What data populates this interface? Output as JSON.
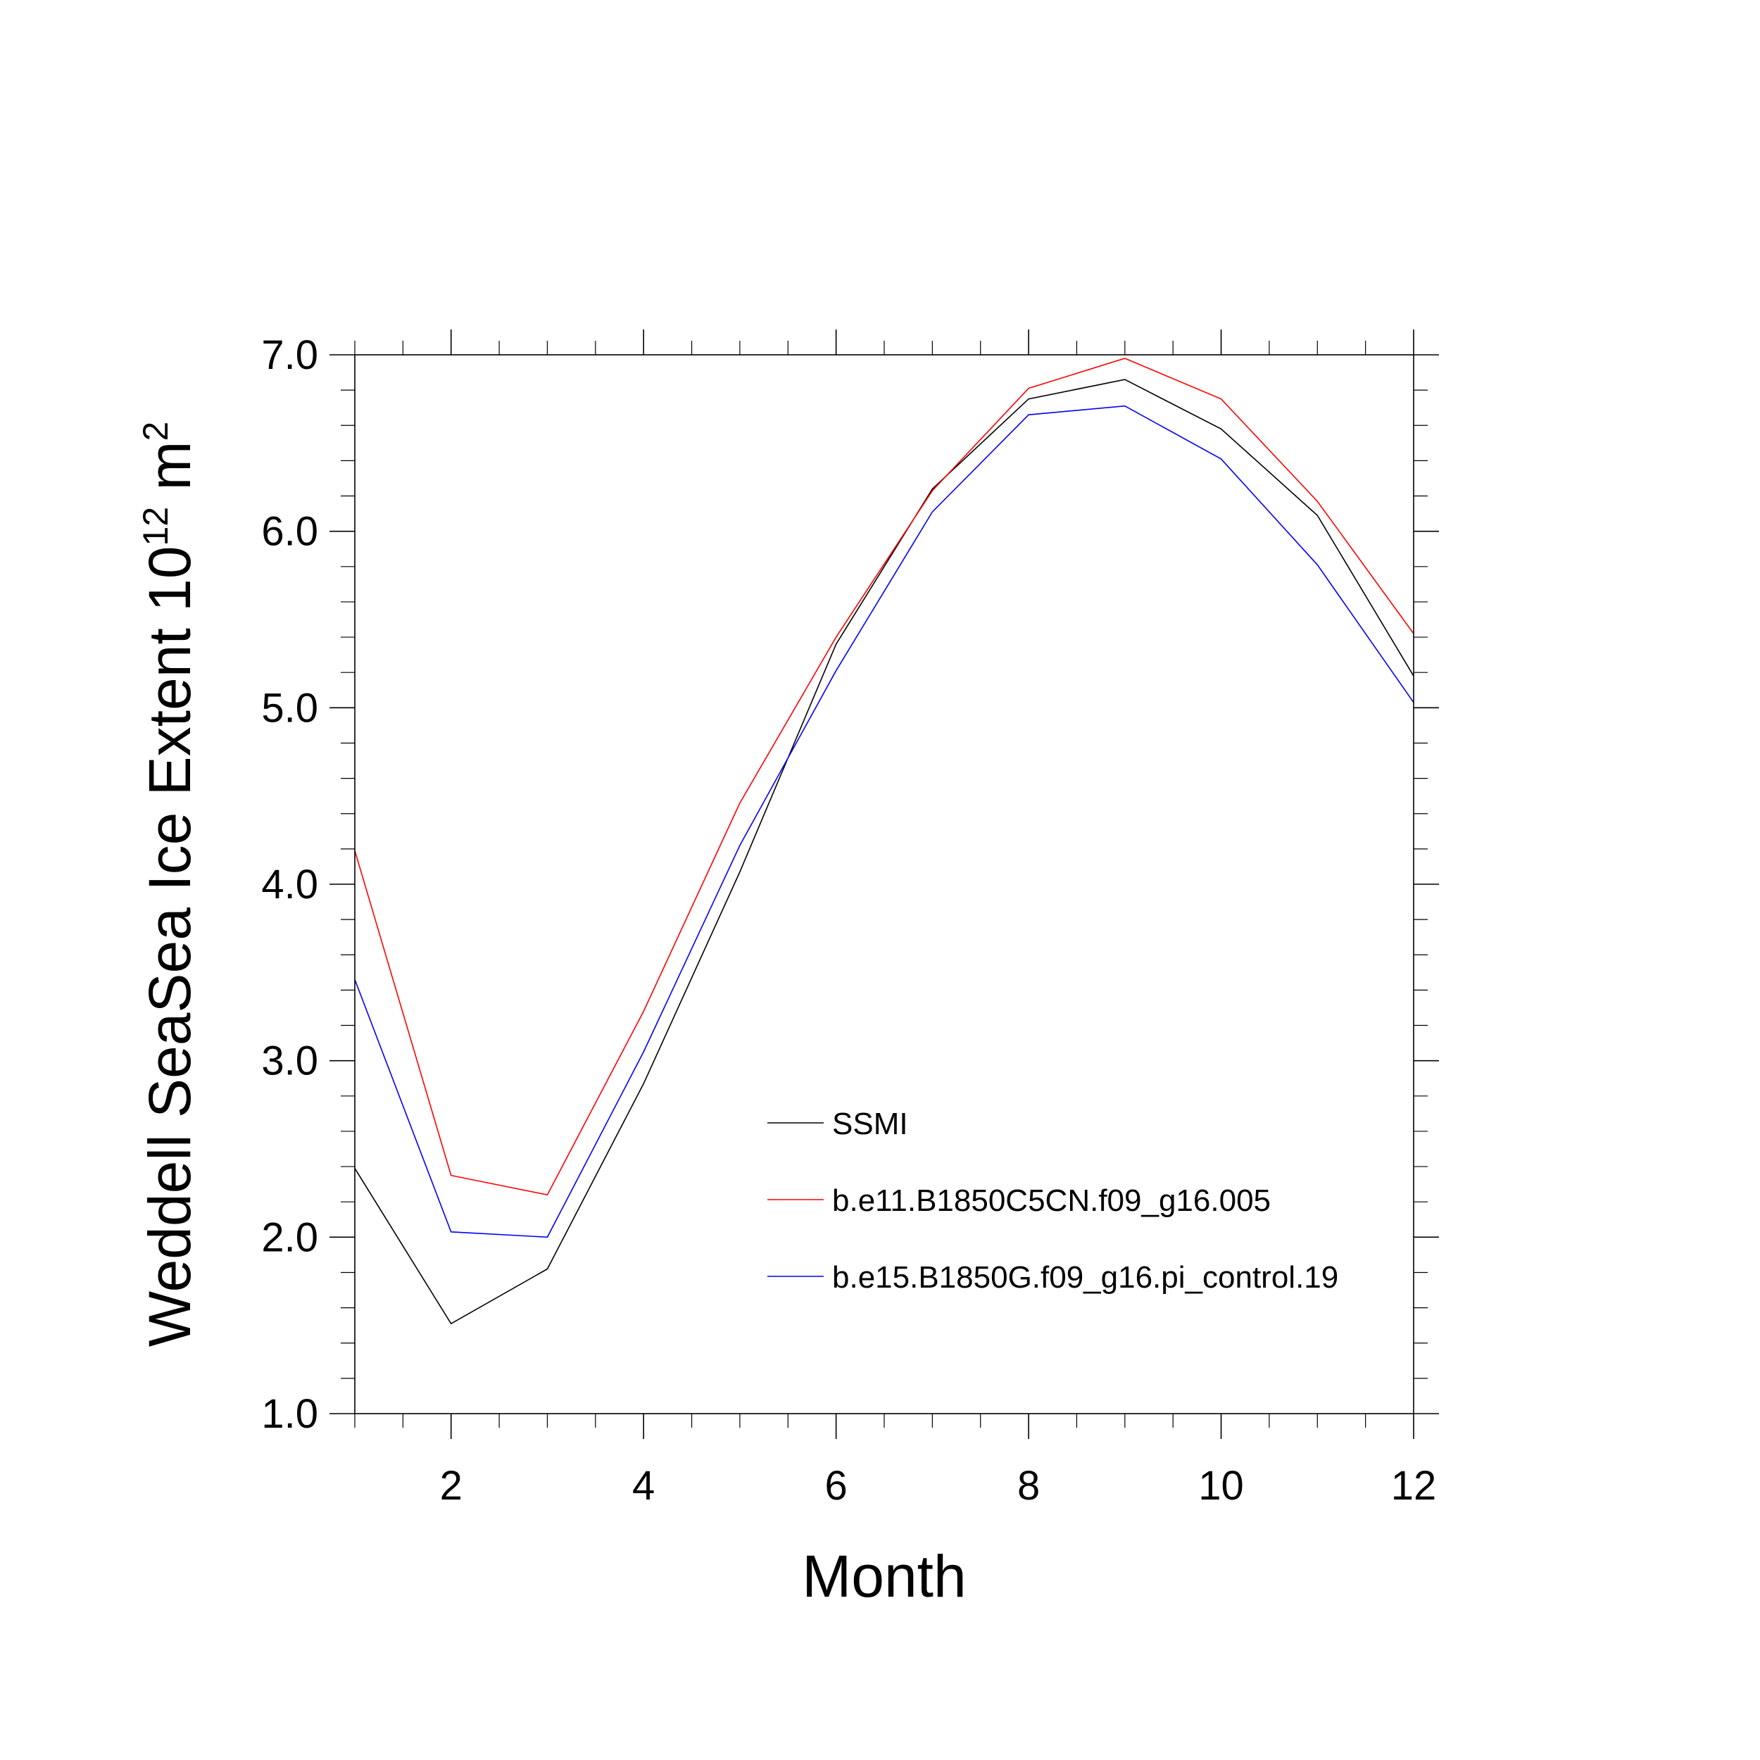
{
  "chart_data": {
    "type": "line",
    "title": "",
    "xlabel": "Month",
    "ylabel": "Weddell SeaSea Ice Extent 10",
    "ylabel_superscript_1": "12",
    "ylabel_unit": " m",
    "ylabel_superscript_2": "2",
    "xlim": [
      1,
      12
    ],
    "ylim": [
      1.0,
      7.0
    ],
    "x_ticks": [
      2,
      4,
      6,
      8,
      10,
      12
    ],
    "x_tick_labels": [
      "2",
      "4",
      "6",
      "8",
      "10",
      "12"
    ],
    "y_ticks": [
      1.0,
      2.0,
      3.0,
      4.0,
      5.0,
      6.0,
      7.0
    ],
    "y_tick_labels": [
      "1.0",
      "2.0",
      "3.0",
      "4.0",
      "5.0",
      "6.0",
      "7.0"
    ],
    "grid": false,
    "legend_position": "lower-right",
    "x": [
      1,
      2,
      3,
      4,
      5,
      6,
      7,
      8,
      9,
      10,
      11,
      12
    ],
    "series": [
      {
        "name": "SSMI",
        "color": "#000000",
        "values": [
          2.39,
          1.51,
          1.82,
          2.87,
          4.07,
          5.36,
          6.24,
          6.75,
          6.86,
          6.58,
          6.09,
          5.18
        ]
      },
      {
        "name": "b.e11.B1850C5CN.f09_g16.005",
        "color": "#ff0000",
        "values": [
          4.19,
          2.35,
          2.24,
          3.28,
          4.46,
          5.4,
          6.23,
          6.81,
          6.98,
          6.75,
          6.17,
          5.42
        ]
      },
      {
        "name": "b.e15.B1850G.f09_g16.pi_control.19",
        "color": "#0000ff",
        "values": [
          3.46,
          2.03,
          2.0,
          3.05,
          4.22,
          5.21,
          6.11,
          6.66,
          6.71,
          6.41,
          5.81,
          5.03
        ]
      }
    ]
  }
}
